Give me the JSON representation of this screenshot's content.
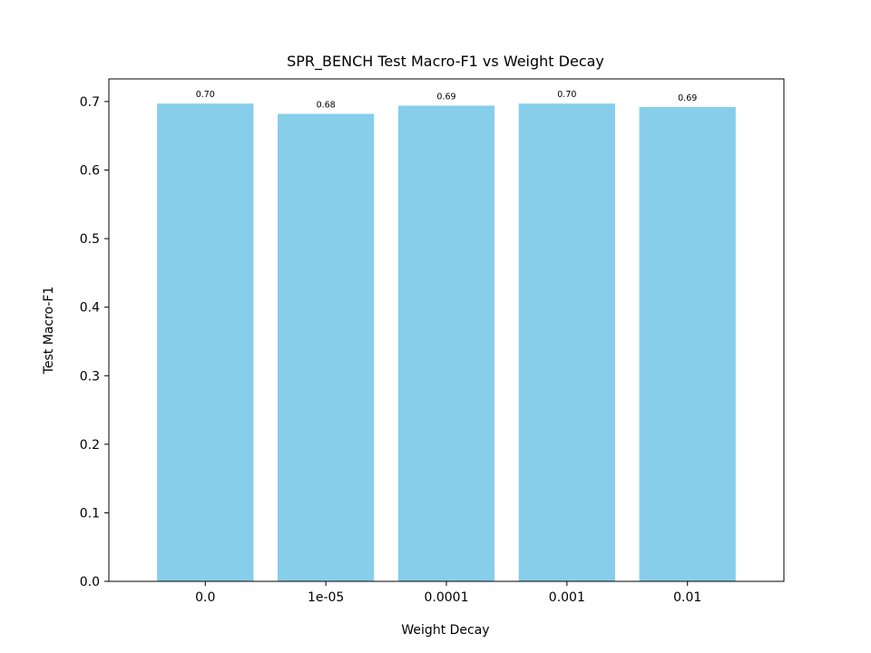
{
  "chart_data": {
    "type": "bar",
    "title": "SPR_BENCH Test Macro-F1 vs Weight Decay",
    "xlabel": "Weight Decay",
    "ylabel": "Test Macro-F1",
    "categories": [
      "0.0",
      "1e-05",
      "0.0001",
      "0.001",
      "0.01"
    ],
    "values": [
      0.697,
      0.682,
      0.694,
      0.697,
      0.692
    ],
    "data_labels": [
      "0.70",
      "0.68",
      "0.69",
      "0.70",
      "0.69"
    ],
    "ylim": [
      0,
      0.733
    ],
    "yticks": [
      0.0,
      0.1,
      0.2,
      0.3,
      0.4,
      0.5,
      0.6,
      0.7
    ],
    "ytick_labels": [
      "0.0",
      "0.1",
      "0.2",
      "0.3",
      "0.4",
      "0.5",
      "0.6",
      "0.7"
    ],
    "grid": false,
    "bar_color": "#87ceeb"
  }
}
